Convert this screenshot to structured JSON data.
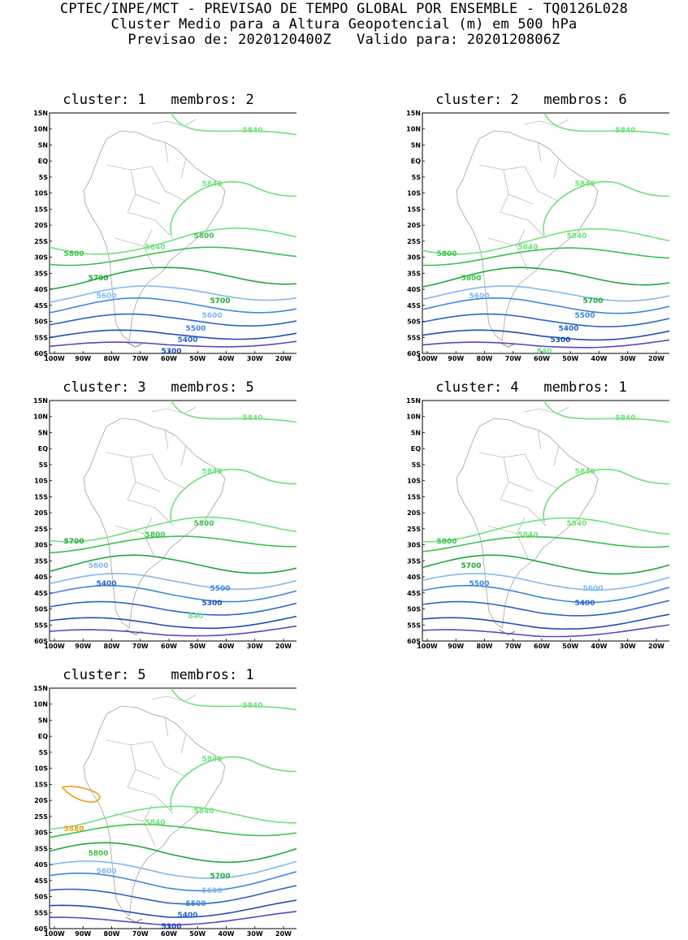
{
  "header": {
    "line1": "CPTEC/INPE/MCT - PREVISAO DE TEMPO GLOBAL POR ENSEMBLE - TQ0126L028",
    "line2": "Cluster Medio para a Altura Geopotencial (m) em 500 hPa",
    "line3": "Previsao de: 2020120400Z   Valido para: 2020120806Z"
  },
  "axes": {
    "lat_labels": [
      "15N",
      "10N",
      "5N",
      "EQ",
      "5S",
      "10S",
      "15S",
      "20S",
      "25S",
      "30S",
      "35S",
      "40S",
      "45S",
      "50S",
      "55S",
      "60S"
    ],
    "lon_labels": [
      "100W",
      "90W",
      "80W",
      "70W",
      "60W",
      "50W",
      "40W",
      "30W",
      "20W"
    ]
  },
  "colors": {
    "c5300": "#1f4fb0",
    "c5400": "#2a64c8",
    "c5500": "#3f86dc",
    "c5600": "#7fb9ee",
    "c5700": "#1fa83a",
    "c5800": "#39c24b",
    "c5840": "#6fe27a",
    "c5880": "#f29a1a",
    "deep": "#5a48c0",
    "land": "#a0a0a0"
  },
  "panels": [
    {
      "title": "cluster: 1   membros: 2",
      "labels": [
        "5840",
        "5840",
        "5800",
        "5840",
        "5800",
        "5700",
        "5700",
        "5600",
        "5600",
        "5500",
        "5400",
        "5300"
      ]
    },
    {
      "title": "cluster: 2   membros: 6",
      "labels": [
        "5840",
        "5840",
        "5840",
        "5840",
        "5800",
        "5800",
        "5700",
        "5600",
        "5500",
        "5400",
        "5300",
        "840"
      ]
    },
    {
      "title": "cluster: 3   membros: 5",
      "labels": [
        "5840",
        "5840",
        "5800",
        "5800",
        "5700",
        "5600",
        "5500",
        "5400",
        "5300",
        "840"
      ]
    },
    {
      "title": "cluster: 4   membros: 1",
      "labels": [
        "5840",
        "5840",
        "5840",
        "5840",
        "5800",
        "5700",
        "5600",
        "5500",
        "5400"
      ]
    },
    {
      "title": "cluster: 5   membros: 1",
      "labels": [
        "5840",
        "5840",
        "5840",
        "5840",
        "5880",
        "5800",
        "5700",
        "5600",
        "5600",
        "5500",
        "5400",
        "5300"
      ]
    }
  ]
}
